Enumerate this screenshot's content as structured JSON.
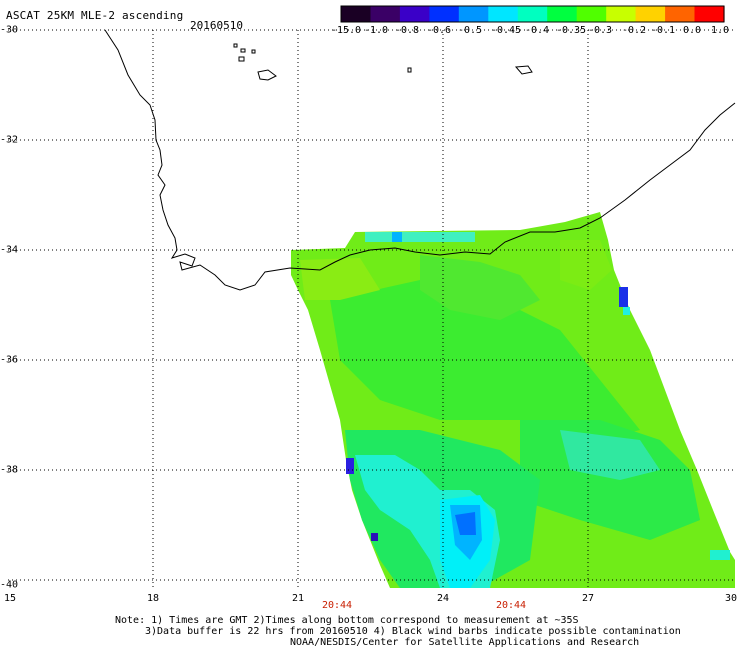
{
  "header": {
    "title": "ASCAT 25KM MLE-2 ascending",
    "date": "20160510"
  },
  "color_scale": {
    "labels": [
      "-15.0",
      "-1.0",
      "-0.8",
      "-0.6",
      "-0.5",
      "-0.45",
      "-0.4",
      "-0.35",
      "-0.3",
      "-0.2",
      "-0.1",
      "0.0",
      "1.0"
    ],
    "colors": [
      "#1a0024",
      "#3a0066",
      "#3a00c8",
      "#0030ff",
      "#0096ff",
      "#00e6ff",
      "#00ffc0",
      "#00ff40",
      "#50ff00",
      "#c8ff00",
      "#ffd200",
      "#ff6400",
      "#ff0000"
    ]
  },
  "axes": {
    "lat_labels": [
      "-30",
      "-32",
      "-34",
      "-36",
      "-38",
      "-40"
    ],
    "lon_labels": [
      "15",
      "18",
      "21",
      "24",
      "27",
      "30"
    ]
  },
  "time_marks": [
    "20:44",
    "20:44"
  ],
  "notes": [
    "Note: 1) Times are GMT 2)Times along bottom correspond to measurement at ~35S",
    "3)Data buffer is 22 hrs from 20160510 4) Black wind barbs indicate possible contamination",
    "NOAA/NESDIS/Center for Satellite Applications and Research"
  ]
}
